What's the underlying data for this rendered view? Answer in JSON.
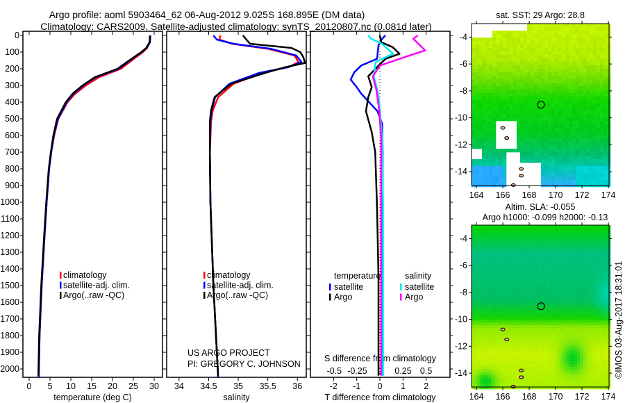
{
  "title": {
    "line1": "Argo profile: aoml 5903464_62 06-Aug-2012 9.025S 168.895E (DM data)",
    "line2": "Climatology: CARS2009. Satellite-adjusted climatology: synTS_20120807.nc (0.081d later)"
  },
  "credits": {
    "project": "US ARGO PROJECT",
    "pi": "PI: GREGORY C. JOHNSON"
  },
  "timestamp": "©IMOS 03-Aug-2017 18:31:01",
  "colors": {
    "climatology": "#ff0000",
    "satellite": "#0000ff",
    "argo": "#000000",
    "s_satellite": "#00e8f0",
    "s_argo": "#ff00ff"
  },
  "chart_data": [
    {
      "type": "line",
      "id": "temperature",
      "xlabel": "temperature (deg C)",
      "ylabel": "",
      "xlim": [
        -1.5,
        32
      ],
      "ylim": [
        2050,
        0
      ],
      "xticks": [
        "0",
        "5",
        "10",
        "15",
        "20",
        "25",
        "30"
      ],
      "yticks": [
        "0",
        "100",
        "200",
        "300",
        "400",
        "500",
        "600",
        "700",
        "800",
        "900",
        "1000",
        "1100",
        "1200",
        "1300",
        "1400",
        "1500",
        "1600",
        "1700",
        "1800",
        "1900",
        "2000"
      ],
      "legend": [
        "climatology",
        "satellite-adj. clim.",
        "Argo(..raw -QC)"
      ],
      "legend_position": "lower-center",
      "series": [
        {
          "name": "climatology",
          "color": "#ff0000",
          "depth": [
            0,
            40,
            75,
            100,
            150,
            200,
            250,
            300,
            350,
            400,
            500,
            600,
            700,
            800,
            1000,
            1200,
            1500,
            1800,
            2050
          ],
          "values": [
            29.0,
            28.9,
            28.3,
            27.3,
            24.6,
            22.0,
            16.8,
            13.6,
            11.0,
            9.2,
            7.0,
            6.0,
            5.3,
            4.8,
            4.2,
            3.7,
            3.0,
            2.5,
            2.3
          ]
        },
        {
          "name": "satellite-adj. clim.",
          "color": "#0000ff",
          "depth": [
            0,
            40,
            75,
            100,
            150,
            200,
            250,
            300,
            350,
            400,
            500,
            600,
            700,
            800,
            1000,
            1200,
            1500,
            1800,
            2050
          ],
          "values": [
            29.1,
            29.0,
            28.2,
            27.0,
            24.2,
            21.5,
            16.0,
            13.0,
            10.6,
            9.0,
            6.9,
            5.9,
            5.3,
            4.8,
            4.2,
            3.7,
            3.0,
            2.5,
            2.3
          ]
        },
        {
          "name": "Argo(..raw -QC)",
          "color": "#000000",
          "depth": [
            0,
            40,
            75,
            100,
            150,
            200,
            250,
            300,
            350,
            400,
            500,
            600,
            700,
            800,
            1000,
            1200,
            1500,
            1800,
            2040
          ],
          "values": [
            29.0,
            28.9,
            28.1,
            26.9,
            24.0,
            21.2,
            15.8,
            12.8,
            10.4,
            8.8,
            6.7,
            5.8,
            5.2,
            4.7,
            4.1,
            3.6,
            2.9,
            2.4,
            2.2
          ]
        }
      ]
    },
    {
      "type": "line",
      "id": "salinity",
      "xlabel": "salinity",
      "xlim": [
        33.79,
        36.15
      ],
      "ylim": [
        2050,
        0
      ],
      "xticks": [
        "34",
        "34.5",
        "35",
        "35.5",
        "36"
      ],
      "legend": [
        "climatology",
        "satellite-adj. clim.",
        "Argo(..raw -QC)"
      ],
      "legend_position": "lower-center",
      "series": [
        {
          "name": "climatology",
          "color": "#ff0000",
          "depth": [
            0,
            25,
            50,
            80,
            120,
            160,
            190,
            225,
            290,
            370,
            450,
            515,
            700,
            1000,
            1500,
            2050
          ],
          "values": [
            34.7,
            34.68,
            34.9,
            35.5,
            35.95,
            36.02,
            35.85,
            35.4,
            34.92,
            34.66,
            34.57,
            34.54,
            34.52,
            34.53,
            34.58,
            34.66
          ]
        },
        {
          "name": "satellite-adj. clim.",
          "color": "#0000ff",
          "depth": [
            0,
            25,
            50,
            80,
            120,
            160,
            190,
            225,
            290,
            370,
            450,
            515,
            700,
            1000,
            1500,
            2050
          ],
          "values": [
            34.58,
            34.64,
            34.92,
            35.55,
            35.98,
            36.07,
            35.85,
            35.35,
            34.85,
            34.61,
            34.55,
            34.53,
            34.52,
            34.53,
            34.58,
            34.66
          ]
        },
        {
          "name": "Argo(..raw -QC)",
          "color": "#000000",
          "depth": [
            0,
            30,
            50,
            75,
            100,
            130,
            165,
            190,
            225,
            290,
            370,
            450,
            515,
            700,
            1000,
            1500,
            2040
          ],
          "values": [
            35.08,
            35.15,
            35.2,
            35.9,
            36.05,
            36.1,
            36.13,
            35.8,
            35.45,
            34.88,
            34.6,
            34.54,
            34.52,
            34.52,
            34.53,
            34.58,
            34.66
          ]
        }
      ]
    },
    {
      "type": "line",
      "id": "difference",
      "xlabel": "T difference from climatology",
      "x2label": "S difference from climatology",
      "xlim": [
        -3.0,
        3.03
      ],
      "x2lim": [
        -0.76,
        0.76
      ],
      "ylim": [
        2050,
        0
      ],
      "xticks": [
        "-2",
        "-1",
        "0",
        "1",
        "2"
      ],
      "x2ticks": [
        "-0.5",
        "-0.25",
        "0",
        "0.25",
        "0.5"
      ],
      "legend_titles": {
        "temperature": "temperature",
        "salinity": "salinity"
      },
      "legend": [
        "satellite",
        "Argo",
        "satellite",
        "Argo"
      ],
      "series": [
        {
          "name": "temperature satellite",
          "axis": "T",
          "color": "#0000ff",
          "depth": [
            0,
            20,
            60,
            140,
            180,
            220,
            265,
            310,
            350,
            455,
            530,
            700,
            1000,
            1500,
            2040
          ],
          "values": [
            0.24,
            0.1,
            -0.06,
            -0.12,
            -0.8,
            -1.1,
            -1.26,
            -1.0,
            -0.8,
            -0.1,
            0.1,
            0.12,
            0.12,
            0.12,
            0.12
          ]
        },
        {
          "name": "temperature Argo",
          "axis": "T",
          "color": "#000000",
          "depth": [
            0,
            40,
            70,
            110,
            140,
            180,
            245,
            310,
            370,
            455,
            580,
            700,
            1040,
            1450,
            2040
          ],
          "values": [
            0.0,
            0.05,
            0.55,
            0.85,
            0.25,
            -0.05,
            -0.5,
            -0.35,
            -0.5,
            -0.6,
            -0.35,
            -0.2,
            -0.12,
            -0.06,
            -0.06
          ]
        },
        {
          "name": "salinity satellite",
          "axis": "S",
          "color": "#00e8f0",
          "depth": [
            0,
            20,
            50,
            110,
            160,
            245,
            330,
            410,
            600,
            1000,
            2040
          ],
          "values": [
            -0.13,
            -0.1,
            0.02,
            0.14,
            -0.05,
            -0.07,
            -0.03,
            -0.01,
            0.02,
            0.03,
            0.03
          ]
        },
        {
          "name": "salinity Argo",
          "axis": "S",
          "color": "#ff00ff",
          "depth": [
            0,
            20,
            90,
            120,
            180,
            245,
            330,
            455,
            615,
            1000,
            2040
          ],
          "values": [
            0.41,
            0.36,
            0.49,
            0.32,
            0.0,
            -0.08,
            -0.04,
            -0.01,
            0.01,
            0.01,
            0.01
          ]
        }
      ]
    },
    {
      "type": "heatmap",
      "id": "sst-map",
      "title": "sat. SST: 29 Argo: 28.8",
      "xlim": [
        163.63,
        174.05
      ],
      "ylim": [
        -15.03,
        -3.0
      ],
      "xticks": [
        "164",
        "166",
        "168",
        "170",
        "172",
        "174"
      ],
      "yticks": [
        "-4",
        "-6",
        "-8",
        "-10",
        "-12",
        "-14"
      ],
      "marker": {
        "lon": 168.895,
        "lat": -9.025
      }
    },
    {
      "type": "heatmap",
      "id": "sla-map",
      "title": "Altim. SLA: -0.055",
      "subtitle": "Argo h1000: -0.099 h2000: -0.13",
      "xlim": [
        163.63,
        174.05
      ],
      "ylim": [
        -15.03,
        -3.0
      ],
      "xticks": [
        "164",
        "166",
        "168",
        "170",
        "172",
        "174"
      ],
      "yticks": [
        "-4",
        "-6",
        "-8",
        "-10",
        "-12",
        "-14"
      ],
      "marker": {
        "lon": 168.895,
        "lat": -9.025
      }
    }
  ]
}
